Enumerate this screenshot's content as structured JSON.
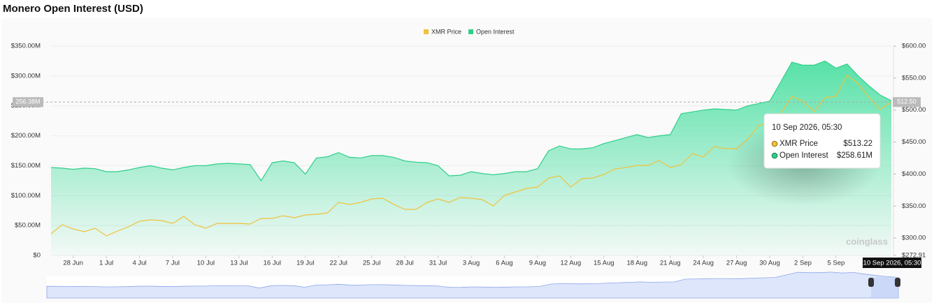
{
  "chart_data": {
    "type": "area-line",
    "title": "Monero Open Interest (USD)",
    "categories": [
      null,
      null,
      "28 Jun",
      null,
      null,
      "1 Jul",
      null,
      null,
      "4 Jul",
      null,
      null,
      "7 Jul",
      null,
      null,
      "10 Jul",
      null,
      null,
      "13 Jul",
      null,
      null,
      "16 Jul",
      null,
      null,
      "19 Jul",
      null,
      null,
      "22 Jul",
      null,
      null,
      "25 Jul",
      null,
      null,
      "28 Jul",
      null,
      null,
      "31 Jul",
      null,
      null,
      "3 Aug",
      null,
      null,
      "6 Aug",
      null,
      null,
      "9 Aug",
      null,
      null,
      "12 Aug",
      null,
      null,
      "15 Aug",
      null,
      null,
      "18 Aug",
      null,
      null,
      "21 Aug",
      null,
      null,
      "24 Aug",
      null,
      null,
      "27 Aug",
      null,
      null,
      "30 Aug",
      null,
      null,
      "2 Sep",
      null,
      null,
      "5 Sep",
      null,
      null,
      null,
      null,
      null
    ],
    "series": [
      {
        "name": "XMR Price",
        "color": "#f0c23b",
        "axis": "y2",
        "values": [
          306.7,
          320.9,
          314.3,
          310,
          315.4,
          303.4,
          311,
          317.6,
          326.3,
          328.5,
          327.4,
          323,
          334,
          320.9,
          315.4,
          323,
          323,
          323,
          322,
          330.7,
          330.7,
          335,
          331.8,
          336.1,
          337.2,
          339.4,
          355.8,
          352.5,
          355.8,
          361.2,
          362.3,
          352.5,
          344.9,
          344.9,
          355.8,
          361.2,
          355.8,
          363.4,
          362.3,
          360.1,
          350.3,
          366.7,
          372.1,
          377.6,
          379.8,
          393.9,
          397.2,
          379.8,
          392.8,
          393.9,
          399.4,
          408.1,
          410.3,
          413.6,
          413.6,
          421.2,
          410.3,
          414.6,
          432.1,
          426.6,
          443,
          439.7,
          439.7,
          453.9,
          475.7,
          481.2,
          494.2,
          521.5,
          513.9,
          497.5,
          519.3,
          521.5,
          554.2,
          541.1,
          519.3,
          500.8,
          513.22
        ]
      },
      {
        "name": "Open Interest",
        "color": "#2fcf8a",
        "axis": "y",
        "values": [
          147000000,
          146000000,
          144000000,
          146000000,
          145000000,
          140000000,
          140000000,
          143000000,
          147000000,
          150000000,
          146000000,
          143000000,
          147000000,
          150000000,
          150000000,
          153000000,
          154000000,
          153000000,
          152000000,
          125000000,
          155000000,
          158000000,
          155000000,
          136000000,
          163000000,
          165000000,
          172000000,
          164000000,
          163000000,
          167000000,
          167000000,
          164000000,
          158000000,
          156000000,
          155000000,
          150000000,
          133000000,
          134000000,
          140000000,
          137000000,
          135000000,
          137000000,
          140000000,
          140000000,
          145000000,
          175000000,
          183000000,
          178000000,
          178000000,
          180000000,
          187000000,
          192000000,
          197000000,
          202000000,
          197000000,
          200000000,
          202000000,
          237000000,
          240000000,
          243000000,
          245000000,
          244000000,
          243000000,
          250000000,
          254000000,
          258000000,
          290000000,
          323000000,
          318000000,
          318000000,
          325000000,
          313000000,
          320000000,
          300000000,
          283000000,
          268000000,
          258610000
        ]
      }
    ],
    "ylim": [
      0,
      350000000
    ],
    "yticks": [
      {
        "value": 0,
        "label": "$0"
      },
      {
        "value": 50000000,
        "label": "$50.00M"
      },
      {
        "value": 100000000,
        "label": "$100.00M"
      },
      {
        "value": 150000000,
        "label": "$150.00M"
      },
      {
        "value": 200000000,
        "label": "$200.00M"
      },
      {
        "value": 250000000,
        "label": "$250.00M"
      },
      {
        "value": 300000000,
        "label": "$300.00M"
      },
      {
        "value": 350000000,
        "label": "$350.00M"
      }
    ],
    "y2lim": [
      272.91,
      600
    ],
    "y2ticks": [
      {
        "value": 272.91,
        "label": "$272.91"
      },
      {
        "value": 300,
        "label": "$300.00"
      },
      {
        "value": 350,
        "label": "$350.00"
      },
      {
        "value": 400,
        "label": "$400.00"
      },
      {
        "value": 450,
        "label": "$450.00"
      },
      {
        "value": 500,
        "label": "$500.00"
      },
      {
        "value": 550,
        "label": "$550.00"
      },
      {
        "value": 600,
        "label": "$600.00"
      }
    ],
    "grid": true,
    "legend": "top",
    "crosshair": {
      "y": 256380000,
      "y_label": "256.38M",
      "y2_label": "512.50",
      "x_label": "10 Sep 2026, 05:30"
    },
    "tooltip": {
      "title": "10 Sep 2026, 05:30",
      "values": [
        "$513.22",
        "$258.61M"
      ]
    },
    "watermark": "coinglass"
  }
}
